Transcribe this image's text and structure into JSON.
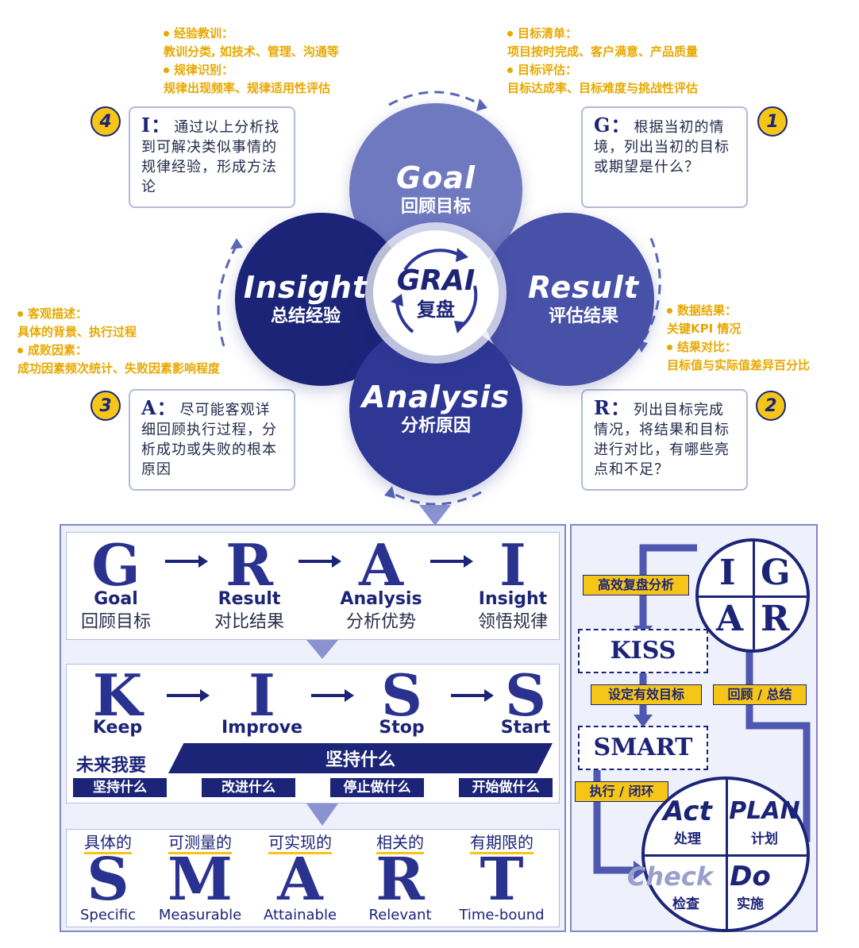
{
  "notes": {
    "top_left": [
      "经验教训：",
      "教训分类, 如技术、管理、沟通等",
      "规律识别：",
      "规律出现频率、规律适用性评估"
    ],
    "top_right": [
      "目标清单：",
      "项目按时完成、客户满意、产品质量",
      "目标评估：",
      "目标达成率、目标难度与挑战性评估"
    ],
    "mid_left": [
      "客观描述：",
      "具体的背景、执行过程",
      "成败因素：",
      "成功因素频次统计、失败因素影响程度"
    ],
    "mid_right": [
      "数据结果：",
      "关键KPI 情况",
      "结果对比：",
      "目标值与实际值差异百分比"
    ]
  },
  "steps": {
    "g": {
      "num": "1",
      "key": "G：",
      "text": "根据当初的情境，列出当初的目标或期望是什么？"
    },
    "r": {
      "num": "2",
      "key": "R：",
      "text": "列出目标完成情况，将结果和目标进行对比，有哪些亮点和不足？"
    },
    "a": {
      "num": "3",
      "key": "A：",
      "text": "尽可能客观详细回顾执行过程，分析成功或失败的根本原因"
    },
    "i": {
      "num": "4",
      "key": "I：",
      "text": "通过以上分析找到可解决类似事情的规律经验，形成方法论"
    }
  },
  "petals": {
    "goal": {
      "en": "Goal",
      "cn": "回顾目标"
    },
    "result": {
      "en": "Result",
      "cn": "评估结果"
    },
    "analysis": {
      "en": "Analysis",
      "cn": "分析原因"
    },
    "insight": {
      "en": "Insight",
      "cn": "总结经验"
    },
    "center_en": "GRAI",
    "center_cn": "复盘"
  },
  "grai_row": [
    {
      "letter": "G",
      "en": "Goal",
      "cn": "回顾目标"
    },
    {
      "letter": "R",
      "en": "Result",
      "cn": "对比结果"
    },
    {
      "letter": "A",
      "en": "Analysis",
      "cn": "分析优势"
    },
    {
      "letter": "I",
      "en": "Insight",
      "cn": "领悟规律"
    }
  ],
  "kiss_row": [
    {
      "letter": "K",
      "en": "Keep",
      "tag": "坚持什么"
    },
    {
      "letter": "I",
      "en": "Improve",
      "tag": "改进什么"
    },
    {
      "letter": "S",
      "en": "Stop",
      "tag": "停止做什么"
    },
    {
      "letter": "S",
      "en": "Start",
      "tag": "开始做什么"
    }
  ],
  "kiss_future": "未来我要",
  "kiss_banner": "坚持什么",
  "smart_row": [
    {
      "cn": "具体的",
      "letter": "S",
      "en": "Specific"
    },
    {
      "cn": "可测量的",
      "letter": "M",
      "en": "Measurable"
    },
    {
      "cn": "可实现的",
      "letter": "A",
      "en": "Attainable"
    },
    {
      "cn": "相关的",
      "letter": "R",
      "en": "Relevant"
    },
    {
      "cn": "有期限的",
      "letter": "T",
      "en": "Time-bound"
    }
  ],
  "cycle": {
    "igar": [
      "I",
      "G",
      "A",
      "R"
    ],
    "kiss": "KISS",
    "smart": "SMART",
    "tag_analysis": "高效复盘分析",
    "tag_goal": "设定有效目标",
    "tag_review": "回顾 / 总结",
    "tag_exec": "执行 / 闭环",
    "pdca": [
      {
        "en": "Act",
        "cn": "处理"
      },
      {
        "en": "PLAN",
        "cn": "计划"
      },
      {
        "en": "Check",
        "cn": "检查"
      },
      {
        "en": "Do",
        "cn": "实施"
      }
    ]
  },
  "colors": {
    "navy": "#1c2478",
    "accent": "#f5c517",
    "note": "#e8a800"
  }
}
